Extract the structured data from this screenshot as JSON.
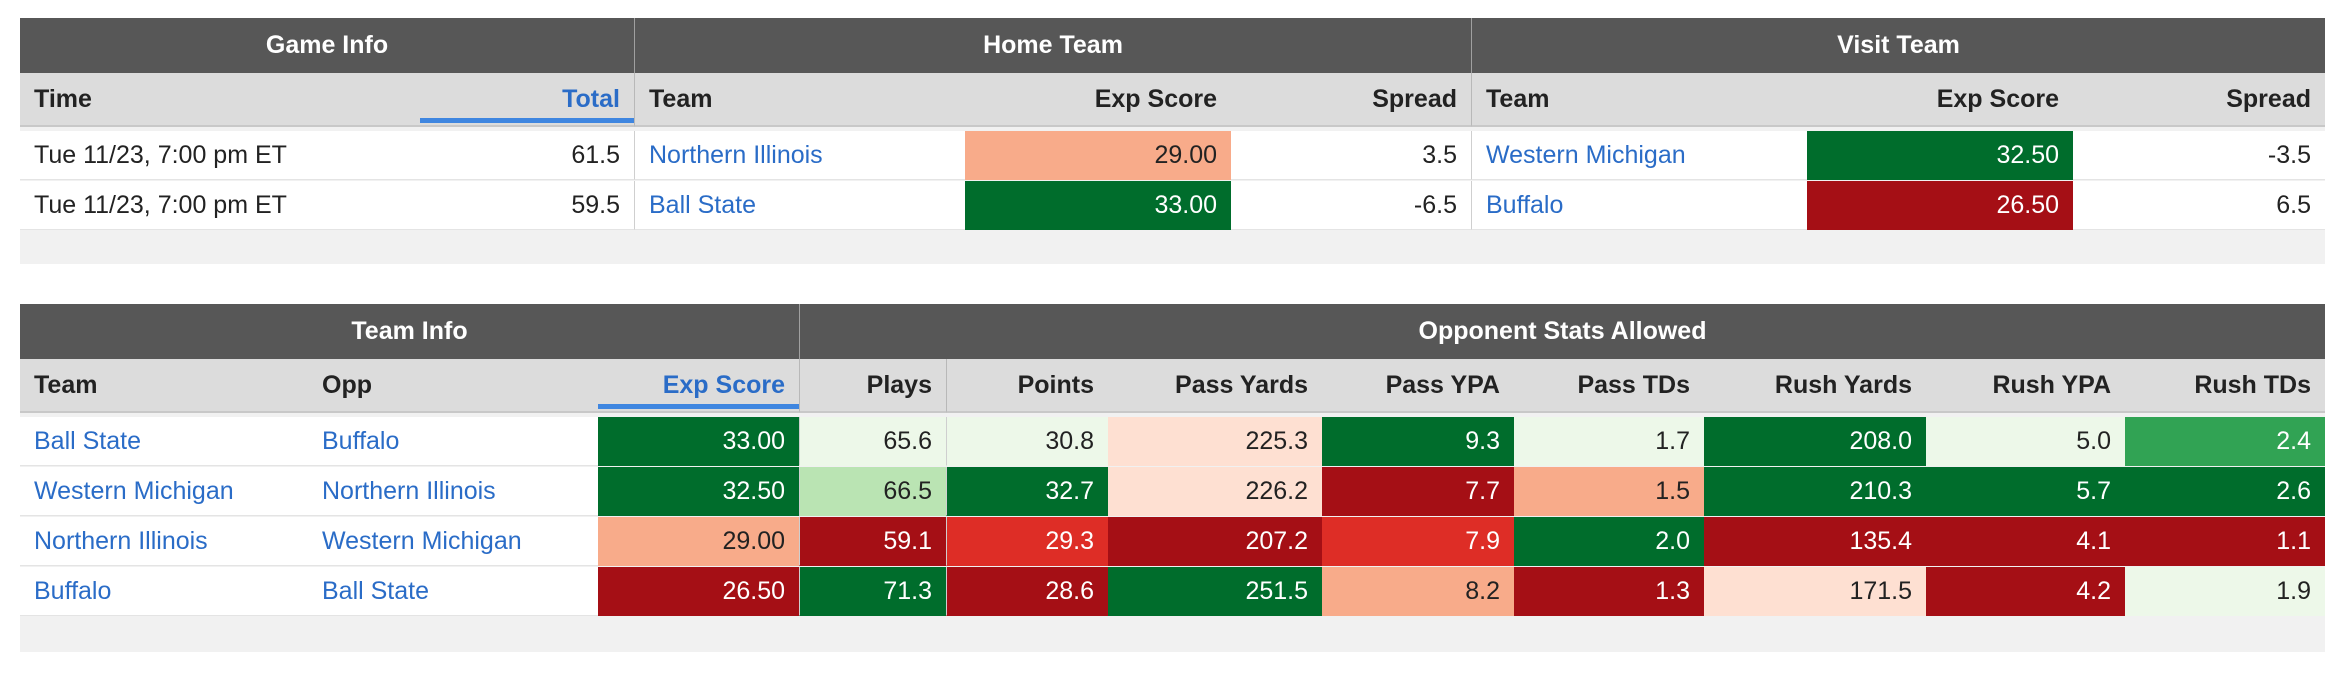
{
  "game_table": {
    "groups": {
      "game_info": "Game Info",
      "home_team": "Home Team",
      "visit_team": "Visit Team"
    },
    "columns": {
      "time": "Time",
      "total": "Total",
      "home_team": "Team",
      "home_exp_score": "Exp Score",
      "home_spread": "Spread",
      "visit_team": "Team",
      "visit_exp_score": "Exp Score",
      "visit_spread": "Spread"
    },
    "sorted_column": "total",
    "rows": [
      {
        "time": "Tue 11/23, 7:00 pm ET",
        "total": "61.5",
        "home_team": "Northern Illinois",
        "home_exp_score": "29.00",
        "home_spread": "3.5",
        "visit_team": "Western Michigan",
        "visit_exp_score": "32.50",
        "visit_spread": "-3.5"
      },
      {
        "time": "Tue 11/23, 7:00 pm ET",
        "total": "59.5",
        "home_team": "Ball State",
        "home_exp_score": "33.00",
        "home_spread": "-6.5",
        "visit_team": "Buffalo",
        "visit_exp_score": "26.50",
        "visit_spread": "6.5"
      }
    ],
    "cell_colors": [
      {
        "home_exp_score": "#f8ab8a",
        "visit_exp_score": "#006d2c"
      },
      {
        "home_exp_score": "#006d2c",
        "visit_exp_score": "#a50f15"
      }
    ]
  },
  "team_table": {
    "groups": {
      "team_info": "Team Info",
      "opp_stats": "Opponent Stats Allowed"
    },
    "columns": {
      "team": "Team",
      "opp": "Opp",
      "exp_score": "Exp Score",
      "plays": "Plays",
      "points": "Points",
      "pass_yards": "Pass Yards",
      "pass_ypa": "Pass YPA",
      "pass_tds": "Pass TDs",
      "rush_yards": "Rush Yards",
      "rush_ypa": "Rush YPA",
      "rush_tds": "Rush TDs"
    },
    "sorted_column": "exp_score",
    "rows": [
      {
        "team": "Ball State",
        "opp": "Buffalo",
        "exp_score": "33.00",
        "plays": "65.6",
        "points": "30.8",
        "pass_yards": "225.3",
        "pass_ypa": "9.3",
        "pass_tds": "1.7",
        "rush_yards": "208.0",
        "rush_ypa": "5.0",
        "rush_tds": "2.4"
      },
      {
        "team": "Western Michigan",
        "opp": "Northern Illinois",
        "exp_score": "32.50",
        "plays": "66.5",
        "points": "32.7",
        "pass_yards": "226.2",
        "pass_ypa": "7.7",
        "pass_tds": "1.5",
        "rush_yards": "210.3",
        "rush_ypa": "5.7",
        "rush_tds": "2.6"
      },
      {
        "team": "Northern Illinois",
        "opp": "Western Michigan",
        "exp_score": "29.00",
        "plays": "59.1",
        "points": "29.3",
        "pass_yards": "207.2",
        "pass_ypa": "7.9",
        "pass_tds": "2.0",
        "rush_yards": "135.4",
        "rush_ypa": "4.1",
        "rush_tds": "1.1"
      },
      {
        "team": "Buffalo",
        "opp": "Ball State",
        "exp_score": "26.50",
        "plays": "71.3",
        "points": "28.6",
        "pass_yards": "251.5",
        "pass_ypa": "8.2",
        "pass_tds": "1.3",
        "rush_yards": "171.5",
        "rush_ypa": "4.2",
        "rush_tds": "1.9"
      }
    ],
    "cell_colors": [
      {
        "exp_score": "#006d2c",
        "plays": "#edf8e9",
        "points": "#edf8e9",
        "pass_yards": "#fee0d2",
        "pass_ypa": "#006d2c",
        "pass_tds": "#edf8e9",
        "rush_yards": "#006d2c",
        "rush_ypa": "#edf8e9",
        "rush_tds": "#31a354"
      },
      {
        "exp_score": "#006d2c",
        "plays": "#bae4b3",
        "points": "#006d2c",
        "pass_yards": "#fee0d2",
        "pass_ypa": "#a50f15",
        "pass_tds": "#f8ab8a",
        "rush_yards": "#006d2c",
        "rush_ypa": "#006d2c",
        "rush_tds": "#006d2c"
      },
      {
        "exp_score": "#f8ab8a",
        "plays": "#a50f15",
        "points": "#de2d26",
        "pass_yards": "#a50f15",
        "pass_ypa": "#de2d26",
        "pass_tds": "#006d2c",
        "rush_yards": "#a50f15",
        "rush_ypa": "#a50f15",
        "rush_tds": "#a50f15"
      },
      {
        "exp_score": "#a50f15",
        "plays": "#006d2c",
        "points": "#a50f15",
        "pass_yards": "#006d2c",
        "pass_ypa": "#f8ab8a",
        "pass_tds": "#a50f15",
        "rush_yards": "#fee0d2",
        "rush_ypa": "#a50f15",
        "rush_tds": "#edf8e9"
      }
    ]
  },
  "colors": {
    "link": "#2a6cc7",
    "header_dark": "#575757",
    "header_light": "#dcdcdc",
    "sort_indicator": "#3f86e0"
  }
}
